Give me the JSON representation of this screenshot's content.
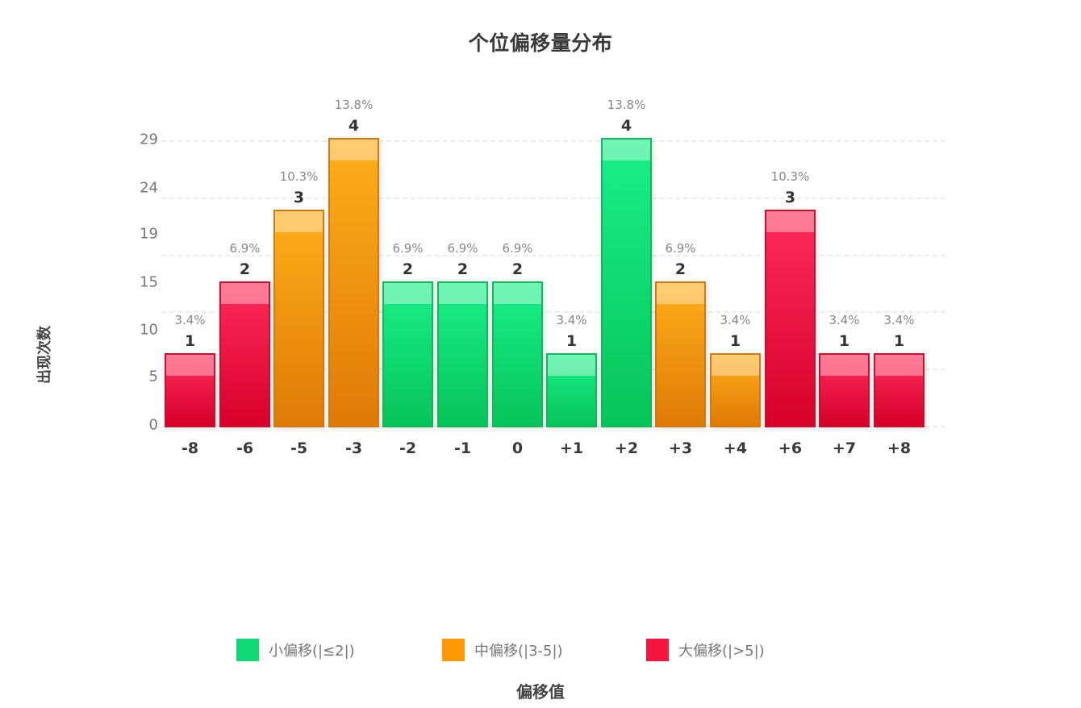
{
  "chart_data": {
    "type": "bar",
    "title": "个位偏移量分布",
    "xlabel": "偏移值",
    "ylabel": "出现次数",
    "categories": [
      "-8",
      "-6",
      "-5",
      "-3",
      "-2",
      "-1",
      "0",
      "+1",
      "+2",
      "+3",
      "+4",
      "+6",
      "+7",
      "+8"
    ],
    "values": [
      1,
      2,
      3,
      4,
      2,
      2,
      2,
      1,
      4,
      2,
      1,
      3,
      1,
      1
    ],
    "percent_labels": [
      "3.4%",
      "6.9%",
      "10.3%",
      "13.8%",
      "6.9%",
      "6.9%",
      "6.9%",
      "3.4%",
      "13.8%",
      "6.9%",
      "3.4%",
      "10.3%",
      "3.4%",
      "3.4%"
    ],
    "groups": [
      "large",
      "large",
      "mid",
      "mid",
      "small",
      "small",
      "small",
      "small",
      "small",
      "mid",
      "mid",
      "large",
      "large",
      "large"
    ],
    "yticks": [
      "29",
      "24",
      "19",
      "15",
      "10",
      "5",
      "0"
    ],
    "grid": true,
    "legend_position": "bottom",
    "legend": [
      {
        "key": "small",
        "label": "小偏移(|≤2|)",
        "color": "#12d977"
      },
      {
        "key": "mid",
        "label": "中偏移(|3-5|)",
        "color": "#ff9a06"
      },
      {
        "key": "large",
        "label": "大偏移(|>5|)",
        "color": "#f5163f"
      }
    ]
  }
}
